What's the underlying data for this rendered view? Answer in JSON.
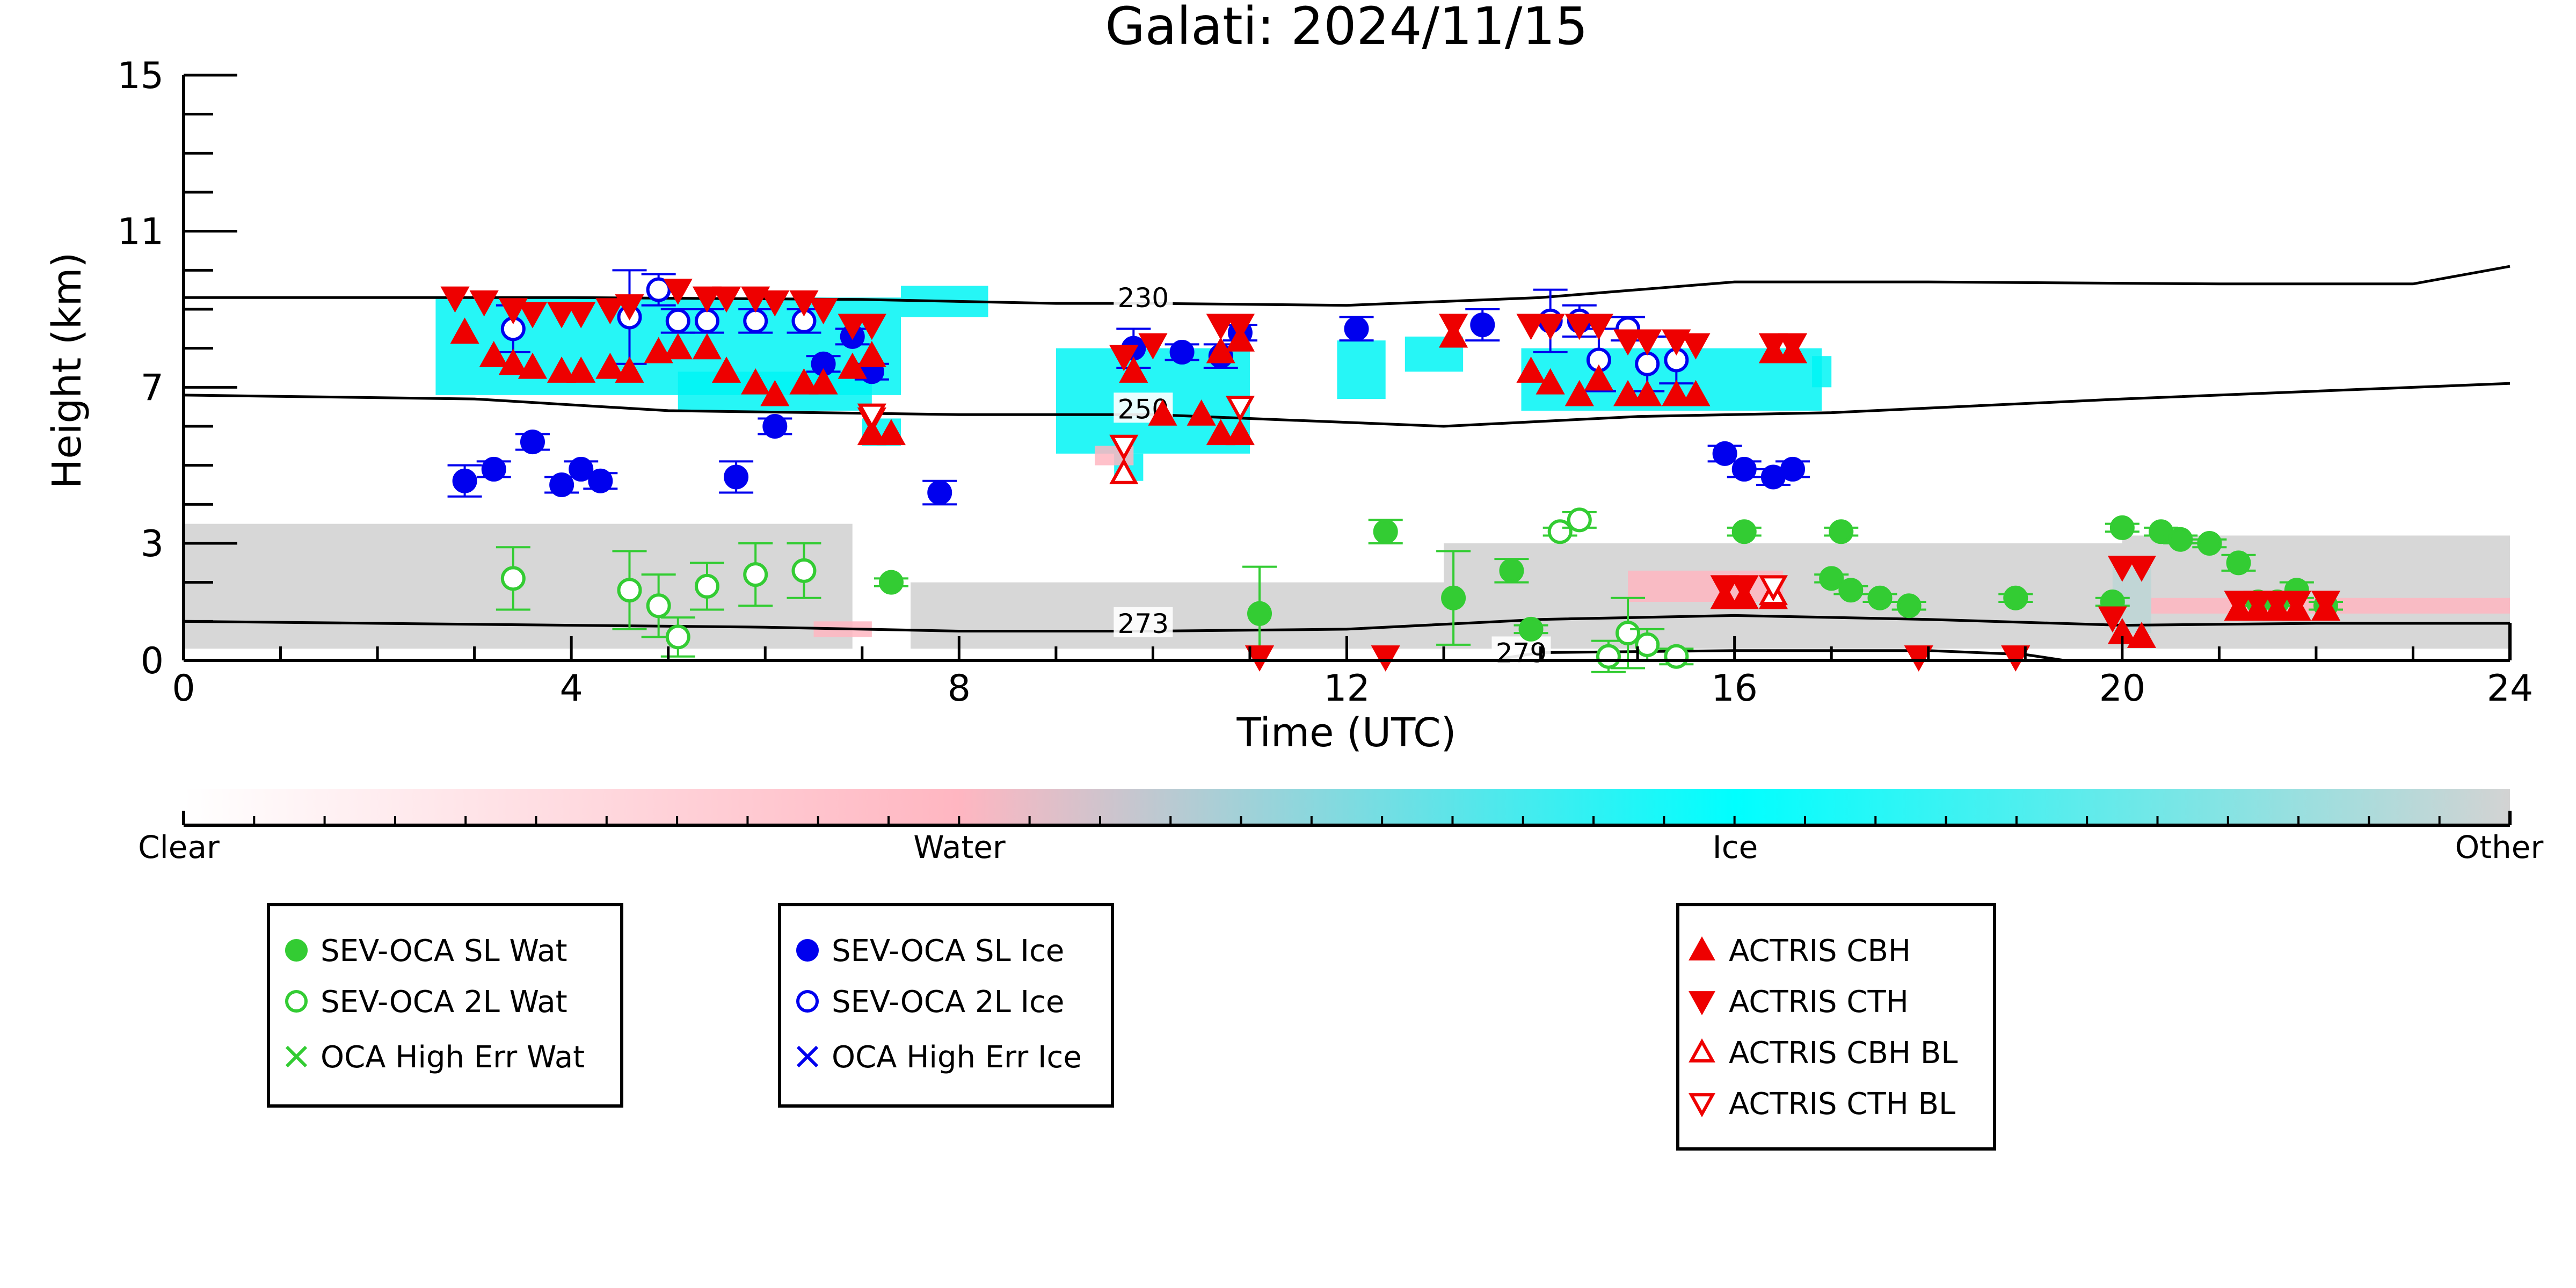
{
  "chart_data": {
    "type": "scatter",
    "title": "Galati: 2024/11/15",
    "xlabel": "Time (UTC)",
    "ylabel": "Height (km)",
    "xlim": [
      0,
      24
    ],
    "ylim": [
      0,
      15
    ],
    "x_ticks": [
      "0",
      "4",
      "8",
      "12",
      "16",
      "20",
      "24"
    ],
    "y_ticks": [
      "0",
      "3",
      "7",
      "11",
      "15"
    ],
    "isotherms": [
      {
        "label": "230",
        "label_x": 9.9,
        "label_y": 9.3,
        "points": [
          [
            0,
            9.3
          ],
          [
            4,
            9.3
          ],
          [
            7,
            9.25
          ],
          [
            9,
            9.15
          ],
          [
            10,
            9.15
          ],
          [
            12,
            9.1
          ],
          [
            14,
            9.3
          ],
          [
            16,
            9.7
          ],
          [
            18,
            9.7
          ],
          [
            21,
            9.65
          ],
          [
            23,
            9.65
          ],
          [
            24,
            10.1
          ]
        ]
      },
      {
        "label": "250",
        "label_x": 9.9,
        "label_y": 6.45,
        "points": [
          [
            0,
            6.8
          ],
          [
            3,
            6.7
          ],
          [
            5,
            6.4
          ],
          [
            8,
            6.3
          ],
          [
            10,
            6.3
          ],
          [
            11,
            6.2
          ],
          [
            13,
            6.0
          ],
          [
            15,
            6.25
          ],
          [
            17,
            6.35
          ],
          [
            20,
            6.7
          ],
          [
            22,
            6.9
          ],
          [
            24,
            7.1
          ]
        ]
      },
      {
        "label": "273",
        "label_x": 9.9,
        "label_y": 0.95,
        "points": [
          [
            0,
            1.0
          ],
          [
            2,
            0.95
          ],
          [
            4,
            0.9
          ],
          [
            6,
            0.85
          ],
          [
            8,
            0.75
          ],
          [
            10,
            0.75
          ],
          [
            12,
            0.8
          ],
          [
            14,
            1.05
          ],
          [
            16,
            1.15
          ],
          [
            18,
            1.05
          ],
          [
            20,
            0.9
          ],
          [
            22,
            0.95
          ],
          [
            24,
            0.95
          ]
        ]
      },
      {
        "label": "279",
        "label_x": 13.8,
        "label_y": 0.2,
        "points": [
          [
            13.6,
            0.05
          ],
          [
            14,
            0.2
          ],
          [
            16,
            0.25
          ],
          [
            18,
            0.25
          ],
          [
            19,
            0.15
          ],
          [
            19.4,
            0.0
          ]
        ]
      }
    ],
    "cloud_mask": [
      {
        "class": "ice",
        "x": [
          2.6,
          7.4
        ],
        "y": [
          6.8,
          9.3
        ]
      },
      {
        "class": "ice",
        "x": [
          5.1,
          7.1
        ],
        "y": [
          6.4,
          7.4
        ]
      },
      {
        "class": "ice",
        "x": [
          7.0,
          7.4
        ],
        "y": [
          5.5,
          6.2
        ]
      },
      {
        "class": "ice",
        "x": [
          9.0,
          11.0
        ],
        "y": [
          5.3,
          8.0
        ]
      },
      {
        "class": "ice",
        "x": [
          9.6,
          9.9
        ],
        "y": [
          4.6,
          5.3
        ]
      },
      {
        "class": "ice",
        "x": [
          7.4,
          8.3
        ],
        "y": [
          8.8,
          9.6
        ]
      },
      {
        "class": "ice",
        "x": [
          11.9,
          12.4
        ],
        "y": [
          6.7,
          8.2
        ]
      },
      {
        "class": "ice",
        "x": [
          12.6,
          13.2
        ],
        "y": [
          7.4,
          8.3
        ]
      },
      {
        "class": "ice",
        "x": [
          13.8,
          16.9
        ],
        "y": [
          6.4,
          8.0
        ]
      },
      {
        "class": "ice",
        "x": [
          16.8,
          17.0
        ],
        "y": [
          7.0,
          7.8
        ]
      },
      {
        "class": "ice",
        "x": [
          19.9,
          20.3
        ],
        "y": [
          0.7,
          2.4
        ]
      },
      {
        "class": "other",
        "x": [
          0,
          6.9
        ],
        "y": [
          0.3,
          3.5
        ]
      },
      {
        "class": "other",
        "x": [
          7.5,
          13.0
        ],
        "y": [
          0.3,
          2.0
        ]
      },
      {
        "class": "other",
        "x": [
          13.0,
          20.0
        ],
        "y": [
          0.3,
          3.0
        ]
      },
      {
        "class": "other",
        "x": [
          20.0,
          24.0
        ],
        "y": [
          0.3,
          3.2
        ]
      },
      {
        "class": "water",
        "x": [
          14.9,
          16.5
        ],
        "y": [
          1.5,
          2.3
        ]
      },
      {
        "class": "water",
        "x": [
          20.3,
          24.0
        ],
        "y": [
          1.2,
          1.6
        ]
      },
      {
        "class": "water",
        "x": [
          9.4,
          9.8
        ],
        "y": [
          5.0,
          5.5
        ]
      },
      {
        "class": "water",
        "x": [
          6.5,
          7.1
        ],
        "y": [
          0.6,
          1.0
        ]
      }
    ],
    "colorbar": {
      "labels": [
        "Clear",
        "Water",
        "Ice",
        "Other"
      ],
      "stops": [
        "#ffffff",
        "#ffb6c1",
        "#00ffff",
        "#d3d3d3"
      ]
    },
    "series": [
      {
        "name": "SEV-OCA SL Wat",
        "marker": "circle",
        "fill": "#33cc33",
        "stroke": "#33cc33",
        "points": [
          [
            7.3,
            2.0
          ],
          [
            11.1,
            1.2
          ],
          [
            12.4,
            3.3
          ],
          [
            13.1,
            1.6
          ],
          [
            13.7,
            2.3
          ],
          [
            13.9,
            0.8
          ],
          [
            16.1,
            3.3
          ],
          [
            17.1,
            3.3
          ],
          [
            17.0,
            2.1
          ],
          [
            17.2,
            1.8
          ],
          [
            17.5,
            1.6
          ],
          [
            17.8,
            1.4
          ],
          [
            18.9,
            1.6
          ],
          [
            19.9,
            1.5
          ],
          [
            20.0,
            3.4
          ],
          [
            20.4,
            3.3
          ],
          [
            20.6,
            3.1
          ],
          [
            20.9,
            3.0
          ],
          [
            21.2,
            2.5
          ],
          [
            21.4,
            1.5
          ],
          [
            21.6,
            1.5
          ],
          [
            21.8,
            1.8
          ],
          [
            22.1,
            1.4
          ]
        ],
        "errors": [
          0.1,
          1.2,
          0.3,
          1.2,
          0.3,
          0.1,
          0.1,
          0.1,
          0.1,
          0.1,
          0.1,
          0.1,
          0.1,
          0.1,
          0.1,
          0.1,
          0.1,
          0.1,
          0.2,
          0.1,
          0.1,
          0.2,
          0.1
        ]
      },
      {
        "name": "SEV-OCA 2L Wat",
        "marker": "circle-open",
        "fill": "#ffffff",
        "stroke": "#33cc33",
        "points": [
          [
            3.4,
            2.1
          ],
          [
            4.6,
            1.8
          ],
          [
            4.9,
            1.4
          ],
          [
            5.1,
            0.6
          ],
          [
            5.4,
            1.9
          ],
          [
            5.9,
            2.2
          ],
          [
            6.4,
            2.3
          ],
          [
            14.2,
            3.3
          ],
          [
            14.4,
            3.6
          ],
          [
            14.7,
            0.1
          ],
          [
            14.9,
            0.7
          ],
          [
            15.1,
            0.4
          ],
          [
            15.4,
            0.1
          ]
        ],
        "errors": [
          0.8,
          1.0,
          0.8,
          0.5,
          0.6,
          0.8,
          0.7,
          0.1,
          0.2,
          0.4,
          0.9,
          0.4,
          0.2
        ]
      },
      {
        "name": "OCA High Err Wat",
        "marker": "x",
        "fill": "none",
        "stroke": "#33cc33",
        "points": [],
        "errors": []
      },
      {
        "name": "SEV-OCA SL Ice",
        "marker": "circle",
        "fill": "#0000ee",
        "stroke": "#0000ee",
        "points": [
          [
            2.9,
            4.6
          ],
          [
            3.2,
            4.9
          ],
          [
            3.6,
            5.6
          ],
          [
            3.9,
            4.5
          ],
          [
            4.1,
            4.9
          ],
          [
            4.3,
            4.6
          ],
          [
            5.7,
            4.7
          ],
          [
            6.1,
            6.0
          ],
          [
            6.6,
            7.6
          ],
          [
            6.9,
            8.3
          ],
          [
            7.1,
            7.4
          ],
          [
            7.8,
            4.3
          ],
          [
            9.8,
            8.0
          ],
          [
            10.3,
            7.9
          ],
          [
            10.7,
            7.8
          ],
          [
            10.9,
            8.4
          ],
          [
            12.1,
            8.5
          ],
          [
            13.4,
            8.6
          ],
          [
            15.9,
            5.3
          ],
          [
            16.1,
            4.9
          ],
          [
            16.4,
            4.7
          ],
          [
            16.6,
            4.9
          ]
        ],
        "errors": [
          0.4,
          0.2,
          0.2,
          0.2,
          0.2,
          0.2,
          0.4,
          0.2,
          0.2,
          0.2,
          0.2,
          0.3,
          0.5,
          0.2,
          0.3,
          0.2,
          0.3,
          0.4,
          0.2,
          0.2,
          0.2,
          0.2
        ]
      },
      {
        "name": "SEV-OCA 2L Ice",
        "marker": "circle-open",
        "fill": "#ffffff",
        "stroke": "#0000ee",
        "points": [
          [
            3.4,
            8.5
          ],
          [
            4.6,
            8.8
          ],
          [
            4.9,
            9.5
          ],
          [
            5.1,
            8.7
          ],
          [
            5.4,
            8.7
          ],
          [
            5.9,
            8.7
          ],
          [
            6.4,
            8.7
          ],
          [
            14.1,
            8.7
          ],
          [
            14.4,
            8.7
          ],
          [
            14.6,
            7.7
          ],
          [
            14.9,
            8.5
          ],
          [
            15.1,
            7.6
          ],
          [
            15.4,
            7.7
          ]
        ],
        "errors": [
          0.6,
          1.2,
          0.4,
          0.3,
          0.3,
          0.3,
          0.3,
          0.8,
          0.4,
          0.8,
          0.3,
          0.7,
          0.6
        ]
      },
      {
        "name": "OCA High Err Ice",
        "marker": "x",
        "fill": "none",
        "stroke": "#0000ee",
        "points": [],
        "errors": []
      },
      {
        "name": "ACTRIS CBH",
        "marker": "triangle-up",
        "fill": "#ee0000",
        "stroke": "#ee0000",
        "points": [
          [
            2.9,
            8.4
          ],
          [
            3.2,
            7.8
          ],
          [
            3.4,
            7.6
          ],
          [
            3.6,
            7.5
          ],
          [
            3.9,
            7.4
          ],
          [
            4.1,
            7.4
          ],
          [
            4.4,
            7.5
          ],
          [
            4.6,
            7.4
          ],
          [
            4.9,
            7.9
          ],
          [
            5.1,
            8.0
          ],
          [
            5.4,
            8.0
          ],
          [
            5.6,
            7.4
          ],
          [
            5.9,
            7.1
          ],
          [
            6.1,
            6.8
          ],
          [
            6.4,
            7.1
          ],
          [
            6.6,
            7.1
          ],
          [
            6.9,
            7.5
          ],
          [
            7.1,
            7.8
          ],
          [
            7.1,
            5.8
          ],
          [
            7.3,
            5.8
          ],
          [
            9.8,
            7.4
          ],
          [
            10.1,
            6.3
          ],
          [
            10.5,
            6.3
          ],
          [
            10.7,
            5.8
          ],
          [
            10.9,
            5.8
          ],
          [
            10.7,
            7.9
          ],
          [
            10.9,
            8.2
          ],
          [
            13.1,
            8.3
          ],
          [
            13.9,
            7.4
          ],
          [
            14.1,
            7.1
          ],
          [
            14.4,
            6.8
          ],
          [
            14.6,
            7.2
          ],
          [
            14.9,
            6.8
          ],
          [
            15.1,
            6.8
          ],
          [
            15.4,
            6.8
          ],
          [
            15.6,
            6.8
          ],
          [
            16.4,
            7.9
          ],
          [
            16.6,
            7.9
          ],
          [
            15.9,
            1.6
          ],
          [
            16.1,
            1.6
          ],
          [
            16.4,
            1.6
          ],
          [
            20.0,
            0.7
          ],
          [
            20.2,
            0.6
          ],
          [
            21.2,
            1.3
          ],
          [
            21.4,
            1.3
          ],
          [
            21.6,
            1.3
          ],
          [
            21.8,
            1.3
          ],
          [
            22.1,
            1.3
          ]
        ]
      },
      {
        "name": "ACTRIS CTH",
        "marker": "triangle-down",
        "fill": "#ee0000",
        "stroke": "#ee0000",
        "points": [
          [
            2.8,
            9.3
          ],
          [
            3.1,
            9.2
          ],
          [
            3.4,
            9.0
          ],
          [
            3.6,
            8.9
          ],
          [
            3.9,
            8.9
          ],
          [
            4.1,
            8.9
          ],
          [
            4.4,
            9.0
          ],
          [
            4.6,
            9.1
          ],
          [
            5.1,
            9.5
          ],
          [
            5.4,
            9.3
          ],
          [
            5.6,
            9.3
          ],
          [
            5.9,
            9.3
          ],
          [
            6.1,
            9.2
          ],
          [
            6.4,
            9.2
          ],
          [
            6.6,
            9.0
          ],
          [
            6.9,
            8.6
          ],
          [
            7.1,
            8.6
          ],
          [
            7.1,
            6.2
          ],
          [
            9.7,
            7.8
          ],
          [
            10.0,
            8.1
          ],
          [
            10.7,
            8.6
          ],
          [
            10.9,
            8.6
          ],
          [
            13.1,
            8.6
          ],
          [
            13.9,
            8.6
          ],
          [
            14.1,
            8.6
          ],
          [
            14.4,
            8.6
          ],
          [
            14.6,
            8.6
          ],
          [
            14.9,
            8.2
          ],
          [
            15.1,
            8.2
          ],
          [
            15.4,
            8.2
          ],
          [
            15.6,
            8.1
          ],
          [
            16.4,
            8.1
          ],
          [
            16.6,
            8.1
          ],
          [
            15.9,
            1.9
          ],
          [
            16.1,
            1.9
          ],
          [
            20.0,
            2.4
          ],
          [
            20.2,
            2.4
          ],
          [
            21.2,
            1.5
          ],
          [
            21.4,
            1.5
          ],
          [
            21.6,
            1.5
          ],
          [
            21.8,
            1.5
          ],
          [
            22.1,
            1.5
          ],
          [
            11.1,
            0.1
          ],
          [
            12.4,
            0.1
          ],
          [
            17.9,
            0.1
          ],
          [
            18.9,
            0.1
          ],
          [
            19.9,
            1.1
          ]
        ]
      },
      {
        "name": "ACTRIS CBH BL",
        "marker": "triangle-up-open",
        "fill": "#ffffff",
        "stroke": "#ee0000",
        "points": [
          [
            9.7,
            4.8
          ],
          [
            16.4,
            1.7
          ]
        ]
      },
      {
        "name": "ACTRIS CTH BL",
        "marker": "triangle-down-open",
        "fill": "#ffffff",
        "stroke": "#ee0000",
        "points": [
          [
            7.1,
            6.3
          ],
          [
            9.7,
            5.5
          ],
          [
            10.9,
            6.5
          ],
          [
            16.4,
            1.9
          ]
        ]
      }
    ],
    "grid": false
  }
}
